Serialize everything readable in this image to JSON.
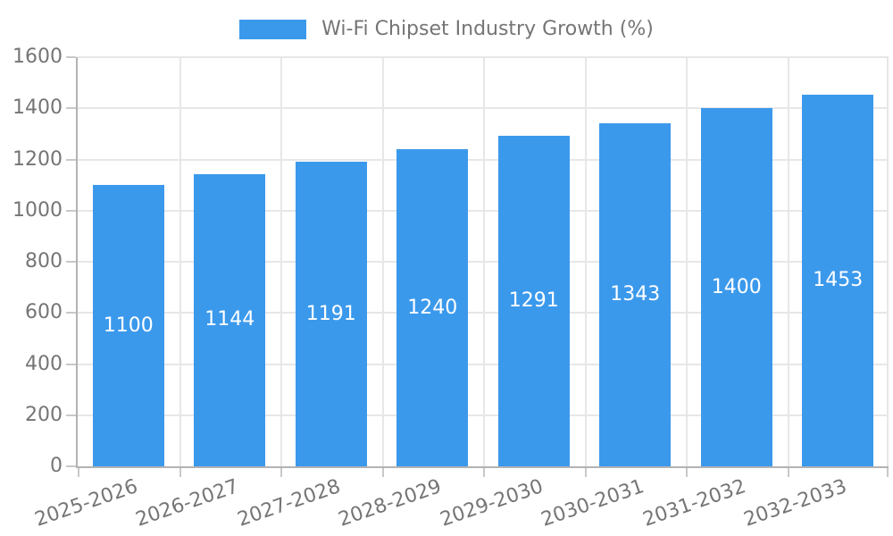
{
  "chart_data": {
    "type": "bar",
    "title": "",
    "legend": {
      "position": "top",
      "entries": [
        "Wi-Fi Chipset Industry Growth (%)"
      ]
    },
    "categories": [
      "2025-2026",
      "2026-2027",
      "2027-2028",
      "2028-2029",
      "2029-2030",
      "2030-2031",
      "2031-2032",
      "2032-2033"
    ],
    "series": [
      {
        "name": "Wi-Fi Chipset Industry Growth (%)",
        "values": [
          1100,
          1144,
          1191,
          1240,
          1291,
          1343,
          1400,
          1453
        ]
      }
    ],
    "value_labels": "inside-center",
    "xlabel": "",
    "ylabel": "",
    "ylim": [
      0,
      1600
    ],
    "y_ticks": [
      0,
      200,
      400,
      600,
      800,
      1000,
      1200,
      1400,
      1600
    ],
    "grid": true,
    "x_tick_rotation_deg": -19,
    "colors": {
      "bar": "#3B99EC",
      "value_label": "#FFFFFF",
      "tick_text": "#757575",
      "grid": "#E7E7E7",
      "axis": "#B3B3B3",
      "tick_mark": "#C9C9C9",
      "background": "#FFFFFF"
    }
  }
}
